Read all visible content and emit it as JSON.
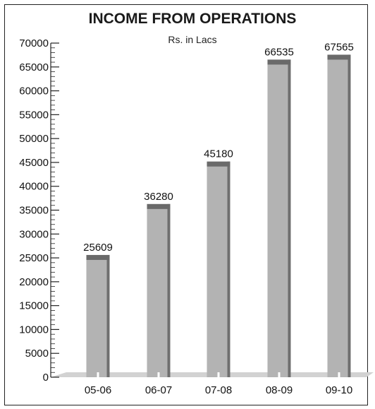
{
  "chart_data": {
    "type": "bar",
    "title": "INCOME FROM OPERATIONS",
    "subtitle": "Rs. in Lacs",
    "categories": [
      "05-06",
      "06-07",
      "07-08",
      "08-09",
      "09-10"
    ],
    "values": [
      25609,
      36280,
      45180,
      66535,
      67565
    ],
    "data_labels": [
      "25609",
      "36280",
      "45180",
      "66535",
      "67565"
    ],
    "ylim": [
      0,
      70000
    ],
    "y_ticks": [
      0,
      5000,
      10000,
      15000,
      20000,
      25000,
      30000,
      35000,
      40000,
      45000,
      50000,
      55000,
      60000,
      65000,
      70000
    ],
    "y_tick_labels": [
      "0",
      "5000",
      "10000",
      "15000",
      "20000",
      "25000",
      "30000",
      "35000",
      "40000",
      "45000",
      "50000",
      "55000",
      "60000",
      "65000",
      "70000"
    ],
    "xlabel": "",
    "ylabel": "",
    "grid": false,
    "legend": "none",
    "colors": {
      "bar_face": "#b3b3b3",
      "bar_shadow": "#6f6f6f",
      "bar_top": "#6a6a6a",
      "floor": "#d2d2d2",
      "axis": "#222222"
    }
  }
}
